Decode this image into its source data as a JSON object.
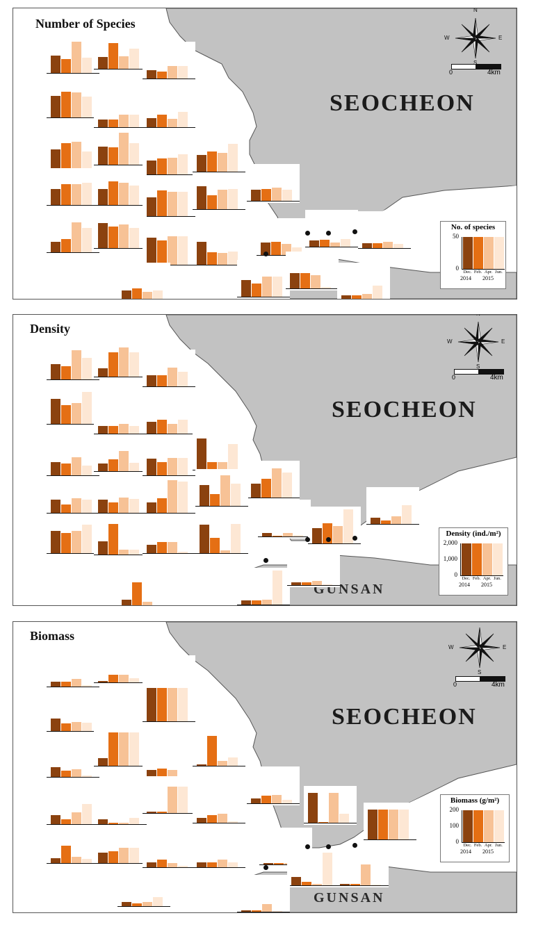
{
  "colors": {
    "land": "#c2c2c2",
    "sea": "#ffffff",
    "series": [
      "#8b420f",
      "#e56f14",
      "#f7c296",
      "#fde7d4"
    ]
  },
  "places": {
    "north": "SEOCHEON",
    "south": "GUNSAN"
  },
  "compass": {
    "n": "N",
    "s": "S",
    "e": "E",
    "w": "W"
  },
  "scale": {
    "start": "0",
    "end": "4km"
  },
  "legend_common": {
    "months": [
      "Dec.",
      "Feb.",
      "Apr.",
      "Jun."
    ],
    "years": [
      "2014",
      "2015"
    ]
  },
  "panels": [
    {
      "title": "Number of Species",
      "legend": {
        "title": "No. of species",
        "ticks": [
          "50",
          "0"
        ],
        "max": 50,
        "values": [
          50,
          50,
          50,
          50
        ]
      },
      "stations": [
        [
          0.52,
          0.42,
          0.93,
          0.45
        ],
        [
          0.35,
          0.77,
          0.38,
          0.6
        ],
        [
          0.25,
          0.2,
          0.37,
          0.38
        ],
        [
          0.65,
          0.77,
          0.76,
          0.62
        ],
        [
          0.23,
          0.23,
          0.37,
          0.37
        ],
        [
          0.28,
          0.38,
          0.25,
          0.45
        ],
        [
          0.58,
          0.78,
          0.82,
          0.52
        ],
        [
          0.55,
          0.52,
          0.95,
          0.65
        ],
        [
          0.42,
          0.48,
          0.5,
          0.6
        ],
        [
          0.5,
          0.6,
          0.56,
          0.83
        ],
        [
          0.47,
          0.62,
          0.62,
          0.66
        ],
        [
          0.48,
          0.7,
          0.66,
          0.58
        ],
        [
          0.57,
          0.77,
          0.73,
          0.73
        ],
        [
          0.68,
          0.42,
          0.59,
          0.6
        ],
        [
          0.33,
          0.35,
          0.4,
          0.33
        ],
        [
          0.31,
          0.4,
          0.9,
          0.73
        ],
        [
          0.75,
          0.65,
          0.7,
          0.6
        ],
        [
          0.82,
          0.72,
          0.85,
          0.85
        ],
        [
          0.68,
          0.37,
          0.36,
          0.4
        ],
        [
          0.38,
          0.4,
          0.33,
          0.22
        ],
        [
          0.18,
          0.2,
          0.12,
          0.22
        ],
        [
          0.15,
          0.15,
          0.18,
          0.13
        ],
        [
          0.28,
          0.33,
          0.22,
          0.28
        ],
        [
          0.5,
          0.4,
          0.6,
          0.6
        ],
        [
          0.45,
          0.45,
          0.4,
          0.05
        ],
        [
          0.12,
          0.12,
          0.17,
          0.42
        ],
        [
          0.08,
          0.1,
          0.1,
          0.05
        ]
      ]
    },
    {
      "title": "Density",
      "legend": {
        "title": "Density (ind./m²)",
        "ticks": [
          "2,000",
          "1,000",
          "0"
        ],
        "max": 2000,
        "values": [
          2000,
          2000,
          2000,
          2000
        ]
      },
      "stations": [
        [
          0.45,
          0.38,
          0.85,
          0.62
        ],
        [
          0.25,
          0.7,
          0.85,
          0.7
        ],
        [
          0.32,
          0.32,
          0.55,
          0.42
        ],
        [
          0.72,
          0.55,
          0.6,
          0.92
        ],
        [
          0.22,
          0.22,
          0.28,
          0.22
        ],
        [
          0.35,
          0.4,
          0.28,
          0.4
        ],
        [
          0.38,
          0.35,
          0.52,
          0.28
        ],
        [
          0.22,
          0.35,
          0.58,
          0.25
        ],
        [
          0.48,
          0.38,
          0.5,
          0.5
        ],
        [
          0.9,
          0.22,
          0.22,
          0.75
        ],
        [
          0.4,
          0.55,
          0.85,
          0.72
        ],
        [
          0.38,
          0.25,
          0.42,
          0.38
        ],
        [
          0.38,
          0.3,
          0.45,
          0.4
        ],
        [
          0.3,
          0.42,
          0.95,
          0.9
        ],
        [
          0.6,
          0.35,
          0.88,
          0.65
        ],
        [
          0.65,
          0.58,
          0.65,
          0.82
        ],
        [
          0.38,
          0.88,
          0.15,
          0.15
        ],
        [
          0.25,
          0.32,
          0.32,
          0.05
        ],
        [
          0.82,
          0.45,
          0.08,
          0.85
        ],
        [
          0.1,
          0.03,
          0.1,
          0.05
        ],
        [
          0.45,
          0.58,
          0.5,
          0.98
        ],
        [
          0.18,
          0.1,
          0.22,
          0.55
        ],
        [
          0.18,
          0.68,
          0.12,
          0.02
        ],
        [
          0.12,
          0.12,
          0.15,
          0.98
        ],
        [
          0.08,
          0.08,
          0.12,
          0.02
        ]
      ]
    },
    {
      "title": "Biomass",
      "legend": {
        "title": "Biomass (g/m²)",
        "ticks": [
          "200",
          "100",
          "0"
        ],
        "max": 200,
        "values": [
          200,
          200,
          200,
          200
        ]
      },
      "stations": [
        [
          0.15,
          0.15,
          0.22,
          0.05
        ],
        [
          0.05,
          0.22,
          0.22,
          0.12
        ],
        [
          0.1,
          0.12,
          0.1,
          0.05
        ],
        [
          0.38,
          0.22,
          0.28,
          0.25
        ],
        [
          0.08,
          0.08,
          0.05,
          0.02
        ],
        [
          1.0,
          1.0,
          1.0,
          1.0
        ],
        [
          0.3,
          0.18,
          0.22,
          0.05
        ],
        [
          0.22,
          1.0,
          1.0,
          1.0
        ],
        [
          0.25,
          0.3,
          0.25,
          0.05
        ],
        [
          0.05,
          0.9,
          0.15,
          0.25
        ],
        [
          0.28,
          0.15,
          0.35,
          0.6
        ],
        [
          0.15,
          0.05,
          0.05,
          0.18
        ],
        [
          0.05,
          0.05,
          0.8,
          0.8
        ],
        [
          0.15,
          0.22,
          0.28,
          0.05
        ],
        [
          0.15,
          0.22,
          0.25,
          0.1
        ],
        [
          0.9,
          0.02,
          0.9,
          0.28
        ],
        [
          0.9,
          0.9,
          0.9,
          0.9
        ],
        [
          0.15,
          0.52,
          0.18,
          0.12
        ],
        [
          0.32,
          0.35,
          0.45,
          0.45
        ],
        [
          0.15,
          0.22,
          0.12,
          0.05
        ],
        [
          0.15,
          0.15,
          0.22,
          0.15
        ],
        [
          0.05,
          0.05,
          0.05,
          0.3
        ],
        [
          0.25,
          0.1,
          0.05,
          0.98
        ],
        [
          0.05,
          0.05,
          0.62,
          0.02
        ],
        [
          0.12,
          0.08,
          0.12,
          0.28
        ],
        [
          0.05,
          0.05,
          0.22,
          0.02
        ]
      ]
    }
  ]
}
